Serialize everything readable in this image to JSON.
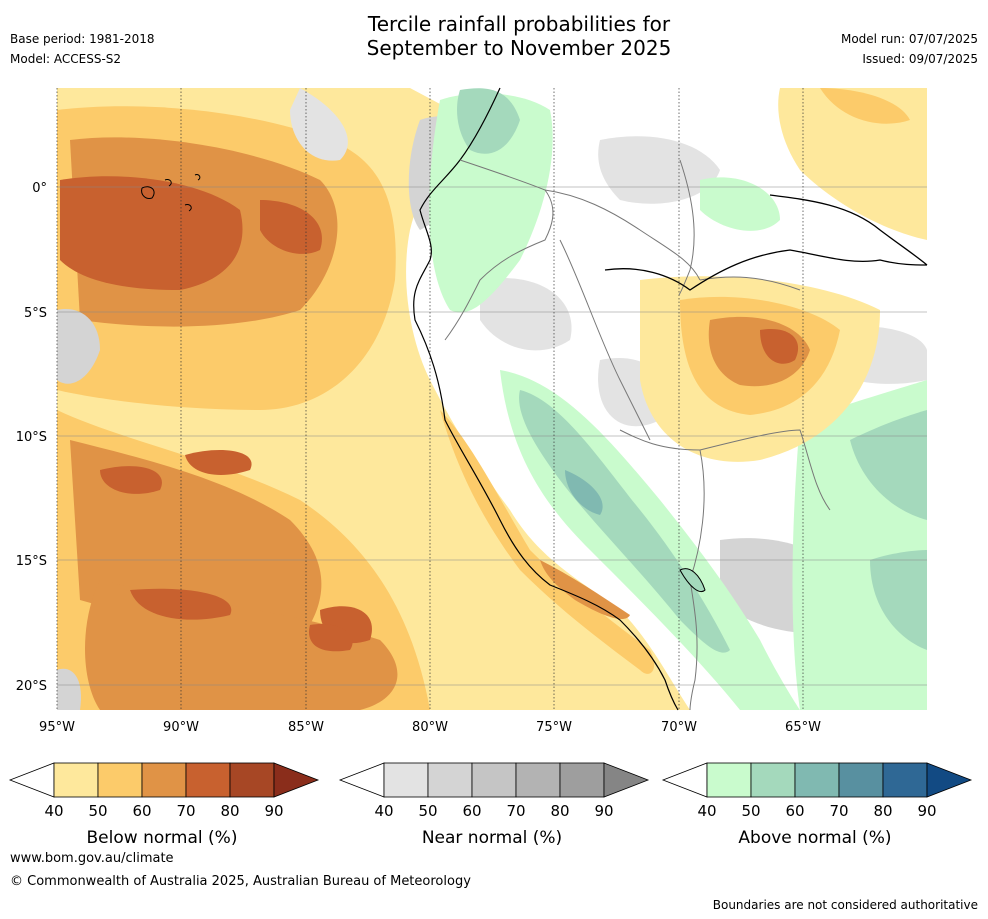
{
  "header": {
    "title_line1": "Tercile rainfall probabilities for",
    "title_line2": "September to November 2025",
    "base_period": "Base period: 1981-2018",
    "model": "Model: ACCESS-S2",
    "model_run": "Model run: 07/07/2025",
    "issued": "Issued: 09/07/2025"
  },
  "map": {
    "lat_labels": [
      "0°",
      "5°S",
      "10°S",
      "15°S",
      "20°S"
    ],
    "lon_labels": [
      "95°W",
      "90°W",
      "85°W",
      "80°W",
      "75°W",
      "70°W",
      "65°W"
    ],
    "regions": [
      {
        "category": "below",
        "level": 50,
        "desc": "eastern Pacific ocean band"
      },
      {
        "category": "below",
        "level": 70,
        "desc": "equatorial Pacific west of Galapagos"
      },
      {
        "category": "below",
        "level": 70,
        "desc": "western Amazon basin centre"
      },
      {
        "category": "near",
        "level": 50,
        "desc": "northern Peru coast"
      },
      {
        "category": "above",
        "level": 50,
        "desc": "Andes highlands"
      },
      {
        "category": "above",
        "level": 60,
        "desc": "Andes central ridge"
      }
    ]
  },
  "legends": [
    {
      "title": "Below normal (%)",
      "ticks": [
        "40",
        "50",
        "60",
        "70",
        "80",
        "90"
      ],
      "colors": [
        "#ffffff",
        "#fee89c",
        "#fccb6a",
        "#e09346",
        "#c8612f",
        "#a74725",
        "#8a2d1b"
      ]
    },
    {
      "title": "Near normal (%)",
      "ticks": [
        "40",
        "50",
        "60",
        "70",
        "80",
        "90"
      ],
      "colors": [
        "#ffffff",
        "#e3e3e3",
        "#d4d4d4",
        "#c5c5c5",
        "#b3b3b3",
        "#9e9e9e",
        "#858585"
      ]
    },
    {
      "title": "Above normal (%)",
      "ticks": [
        "40",
        "50",
        "60",
        "70",
        "80",
        "90"
      ],
      "colors": [
        "#ffffff",
        "#c9fbcd",
        "#a4d9bc",
        "#80b9b1",
        "#5890a0",
        "#2f6895",
        "#124a83"
      ]
    }
  ],
  "footer": {
    "url": "www.bom.gov.au/climate",
    "copyright": "© Commonwealth of Australia 2025, Australian Bureau of Meteorology",
    "note": "Boundaries are not considered authoritative"
  }
}
